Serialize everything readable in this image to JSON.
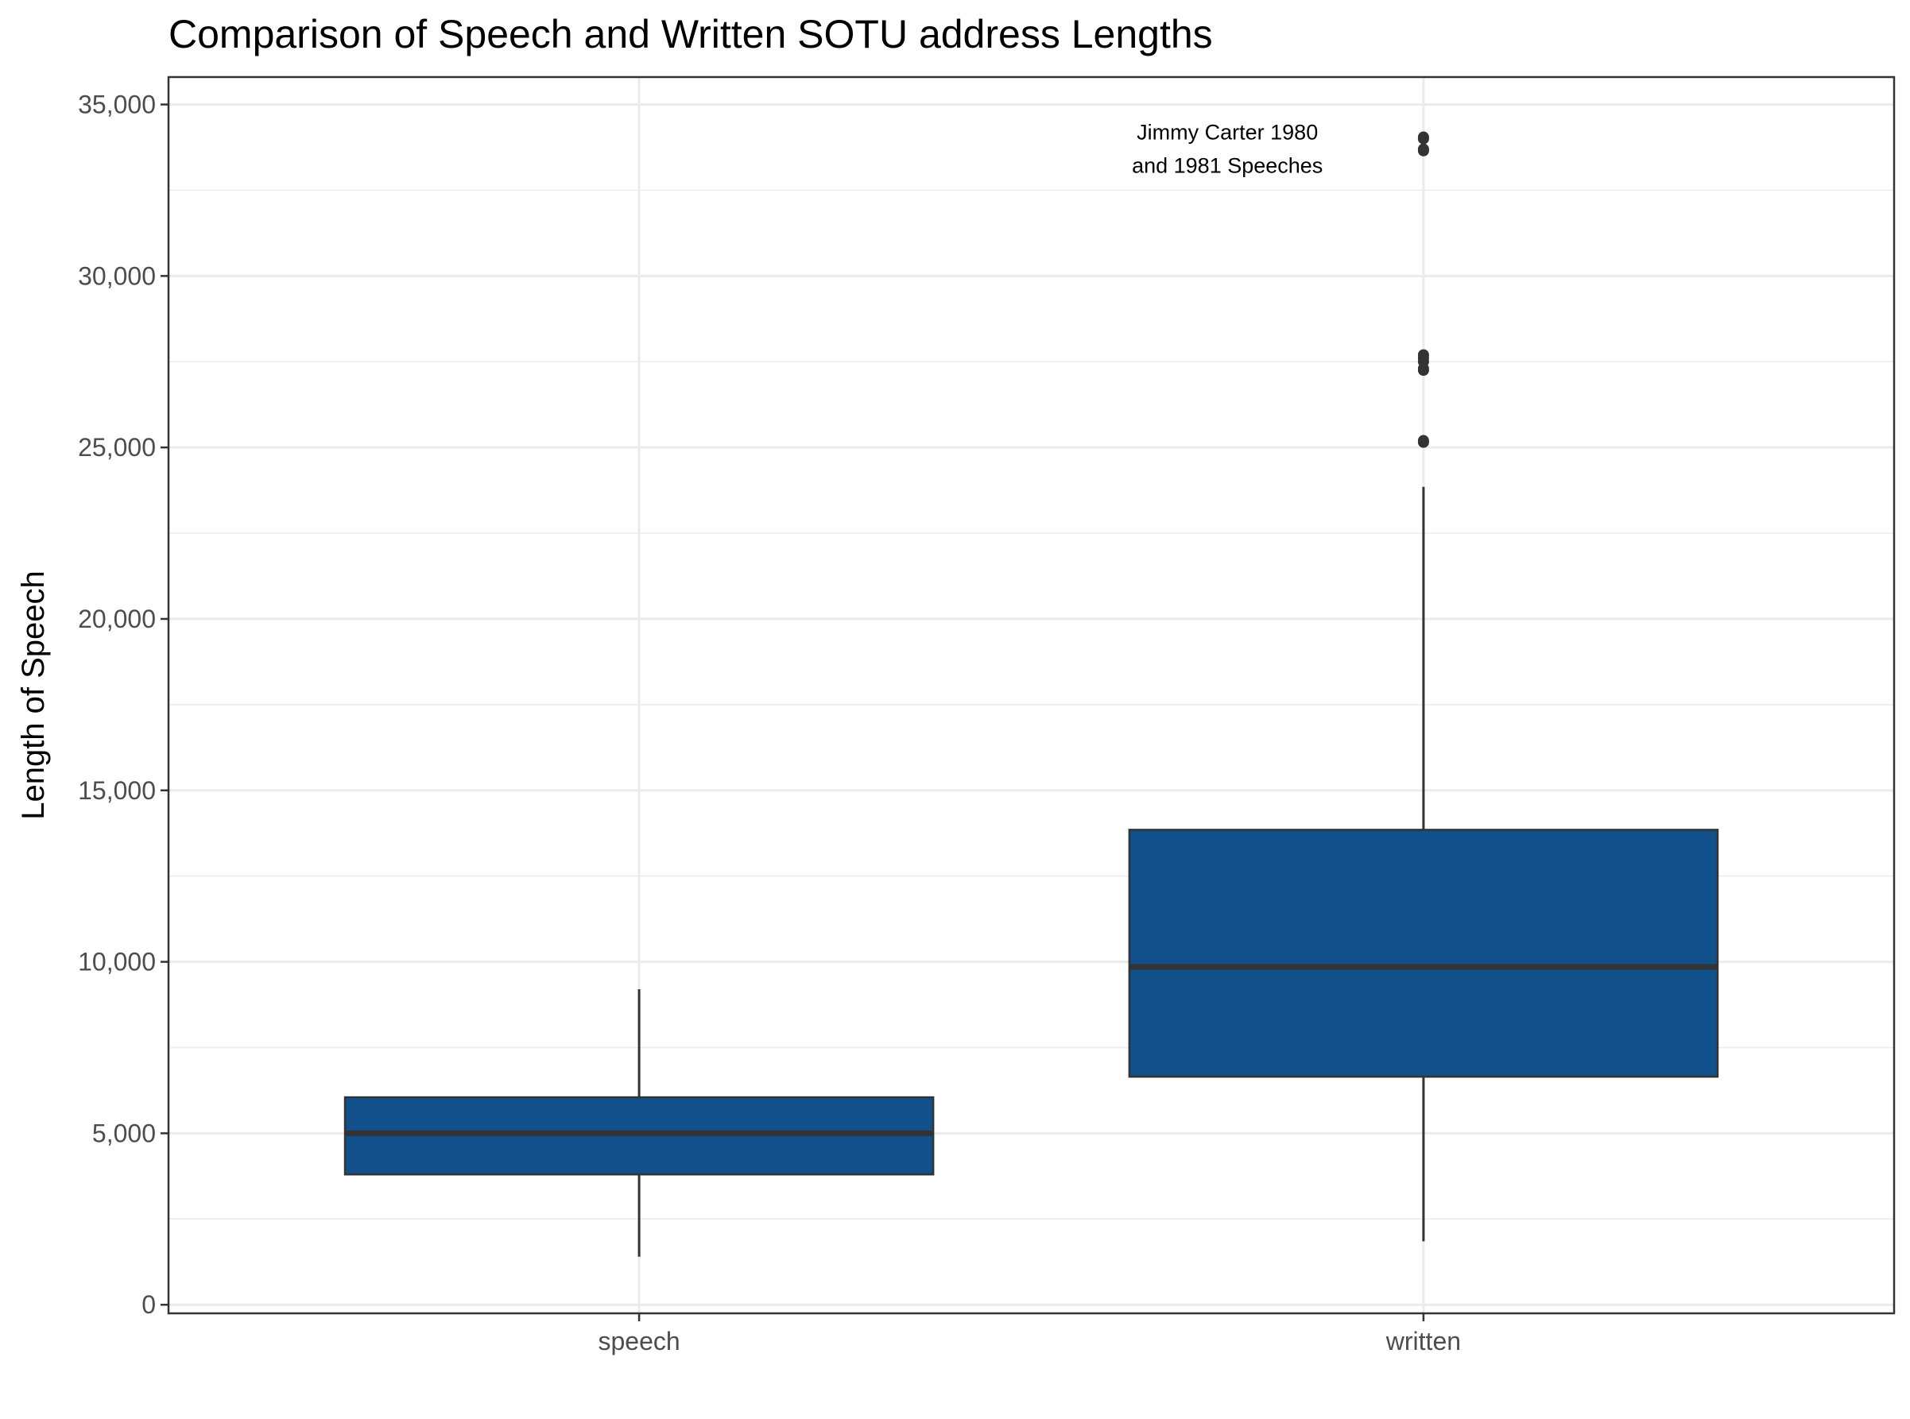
{
  "chart_data": {
    "type": "box",
    "title": "Comparison of Speech and Written SOTU address Lengths",
    "xlabel": "",
    "ylabel": "Length of Speech",
    "ylim": [
      -250,
      35800
    ],
    "yticks": [
      0,
      5000,
      10000,
      15000,
      20000,
      25000,
      30000,
      35000
    ],
    "ytick_labels": [
      "0",
      "5,000",
      "10,000",
      "15,000",
      "20,000",
      "25,000",
      "30,000",
      "35,000"
    ],
    "categories": [
      "speech",
      "written"
    ],
    "boxes": [
      {
        "category": "speech",
        "whisker_low": 1400,
        "q1": 3800,
        "median": 5000,
        "q3": 6050,
        "whisker_high": 9200,
        "outliers": []
      },
      {
        "category": "written",
        "whisker_low": 1850,
        "q1": 6650,
        "median": 9850,
        "q3": 13850,
        "whisker_high": 23850,
        "outliers": [
          25150,
          25200,
          27250,
          27300,
          27500,
          27600,
          27700,
          33650,
          33700,
          34000,
          34050
        ]
      }
    ],
    "annotation": {
      "lines": [
        "Jimmy Carter 1980",
        "and 1981 Speeches"
      ],
      "x_category": "written",
      "x_offset": -0.25,
      "y": 33700
    },
    "grid": true,
    "colors": {
      "box_fill": "#11508A",
      "box_stroke": "#333333",
      "grid": "#EBEBEB",
      "panel_border": "#333333",
      "text": "#000000",
      "tick_text": "#4D4D4D"
    }
  }
}
